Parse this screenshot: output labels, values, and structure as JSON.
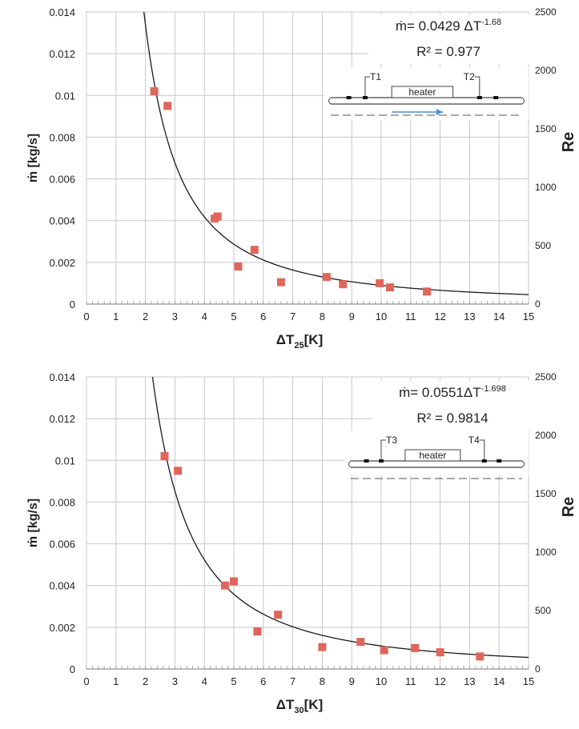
{
  "chart_data": [
    {
      "type": "scatter",
      "xlabel_main": "ΔT",
      "xlabel_sub": "25",
      "xlabel_unit": "[K]",
      "ylabel": "ṁ [kg/s]",
      "y2label": "Re",
      "xlim": [
        0,
        15
      ],
      "ylim": [
        0,
        0.014
      ],
      "y2lim": [
        0,
        2500
      ],
      "x_ticks": [
        "0",
        "1",
        "2",
        "3",
        "4",
        "5",
        "6",
        "7",
        "8",
        "9",
        "10",
        "11",
        "12",
        "13",
        "14",
        "15"
      ],
      "y_ticks": [
        "0",
        "0.002",
        "0.004",
        "0.006",
        "0.008",
        "0.01",
        "0.012",
        "0.014"
      ],
      "y2_ticks": [
        "0",
        "500",
        "1000",
        "1500",
        "2000",
        "2500"
      ],
      "grid": true,
      "equation_prefix": "ṁ= 0.0429 ΔT",
      "equation_exp": "-1.68",
      "r2_label": "R² = 0.977",
      "fit": {
        "a": 0.0429,
        "b": -1.68
      },
      "inset": {
        "t_left": "T1",
        "t_right": "T2",
        "heater": "heater",
        "flow_arrow": true
      },
      "series": [
        {
          "color": "#e0665c",
          "x": [
            2.3,
            2.75,
            4.35,
            4.45,
            5.15,
            5.7,
            6.6,
            8.15,
            8.7,
            9.95,
            10.3,
            11.55
          ],
          "y": [
            0.0102,
            0.0095,
            0.0041,
            0.0042,
            0.0018,
            0.0026,
            0.00105,
            0.0013,
            0.00095,
            0.001,
            0.0008,
            0.0006
          ]
        }
      ]
    },
    {
      "type": "scatter",
      "xlabel_main": "ΔT",
      "xlabel_sub": "30",
      "xlabel_unit": "[K]",
      "ylabel": "ṁ [kg/s]",
      "y2label": "Re",
      "xlim": [
        0,
        15
      ],
      "ylim": [
        0,
        0.014
      ],
      "y2lim": [
        0,
        2500
      ],
      "x_ticks": [
        "0",
        "1",
        "2",
        "3",
        "4",
        "5",
        "6",
        "7",
        "8",
        "9",
        "10",
        "11",
        "12",
        "13",
        "14",
        "15"
      ],
      "y_ticks": [
        "0",
        "0.002",
        "0.004",
        "0.006",
        "0.008",
        "0.01",
        "0.012",
        "0.014"
      ],
      "y2_ticks": [
        "0",
        "500",
        "1000",
        "1500",
        "2000",
        "2500"
      ],
      "grid": true,
      "equation_prefix": "ṁ= 0.0551ΔT",
      "equation_exp": "-1.698",
      "r2_label": "R² = 0.9814",
      "fit": {
        "a": 0.0551,
        "b": -1.698
      },
      "inset": {
        "t_left": "T3",
        "t_right": "T4",
        "heater": "heater",
        "flow_arrow": false
      },
      "series": [
        {
          "color": "#e0665c",
          "x": [
            2.65,
            3.1,
            4.7,
            5.0,
            5.8,
            6.5,
            8.0,
            9.3,
            10.1,
            11.15,
            12.0,
            13.35
          ],
          "y": [
            0.0102,
            0.0095,
            0.004,
            0.0042,
            0.0018,
            0.0026,
            0.00105,
            0.0013,
            0.0009,
            0.001,
            0.0008,
            0.0006
          ]
        }
      ]
    }
  ]
}
